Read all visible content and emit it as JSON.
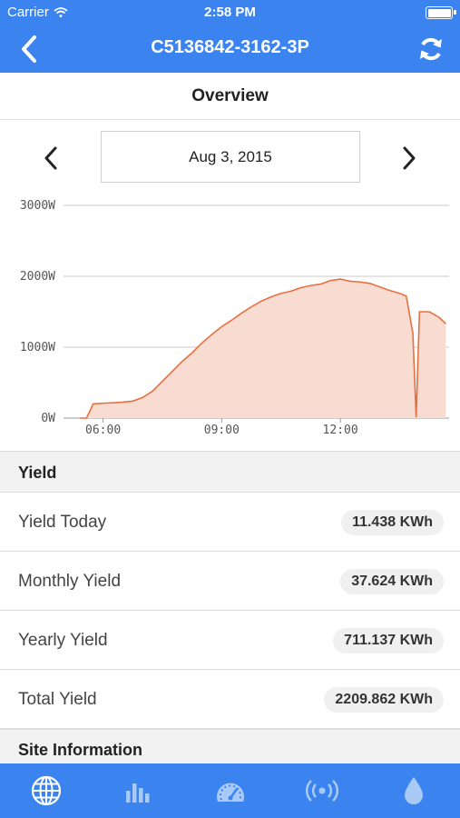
{
  "status_bar": {
    "carrier": "Carrier",
    "time": "2:58 PM"
  },
  "nav": {
    "title": "C5136842-3162-3P",
    "back_icon": "chevron-left-icon",
    "refresh_icon": "refresh-icon"
  },
  "section": {
    "title": "Overview"
  },
  "date_nav": {
    "date": "Aug 3, 2015"
  },
  "chart_data": {
    "type": "area",
    "x_unit": "time of day",
    "xticks": [
      "06:00",
      "09:00",
      "12:00"
    ],
    "yticks": [
      "0W",
      "1000W",
      "2000W",
      "3000W"
    ],
    "ylim": [
      0,
      3000
    ],
    "grid": true,
    "color": "#e8703f",
    "fill": "#f9dcd1",
    "x": [
      "05:25",
      "05:35",
      "05:45",
      "06:00",
      "06:15",
      "06:30",
      "06:45",
      "07:00",
      "07:15",
      "07:30",
      "07:45",
      "08:00",
      "08:15",
      "08:30",
      "08:45",
      "09:00",
      "09:15",
      "09:30",
      "09:45",
      "10:00",
      "10:15",
      "10:30",
      "10:45",
      "11:00",
      "11:15",
      "11:30",
      "11:45",
      "12:00",
      "12:15",
      "12:30",
      "12:45",
      "13:00",
      "13:15",
      "13:30",
      "13:40",
      "13:50",
      "13:55",
      "14:00",
      "14:15",
      "14:30",
      "14:40"
    ],
    "values": [
      0,
      0,
      200,
      210,
      215,
      225,
      240,
      290,
      380,
      520,
      660,
      800,
      920,
      1060,
      1180,
      1290,
      1380,
      1480,
      1570,
      1650,
      1710,
      1760,
      1790,
      1840,
      1870,
      1890,
      1940,
      1960,
      1930,
      1920,
      1900,
      1850,
      1800,
      1760,
      1720,
      1200,
      10,
      1500,
      1500,
      1420,
      1330
    ]
  },
  "yield": {
    "header": "Yield",
    "rows": [
      {
        "label": "Yield Today",
        "value": "11.438 KWh"
      },
      {
        "label": "Monthly Yield",
        "value": "37.624 KWh"
      },
      {
        "label": "Yearly Yield",
        "value": "711.137 KWh"
      },
      {
        "label": "Total Yield",
        "value": "2209.862 KWh"
      }
    ]
  },
  "site_info": {
    "header": "Site Information"
  },
  "tabs": [
    {
      "icon": "globe-icon",
      "active": true
    },
    {
      "icon": "bar-chart-icon",
      "active": false
    },
    {
      "icon": "gauge-icon",
      "active": false
    },
    {
      "icon": "signal-icon",
      "active": false
    },
    {
      "icon": "water-drop-icon",
      "active": false
    }
  ],
  "colors": {
    "primary": "#3b84f0",
    "active_tab": "#ffffff",
    "inactive_tab": "#a9c9f7"
  }
}
